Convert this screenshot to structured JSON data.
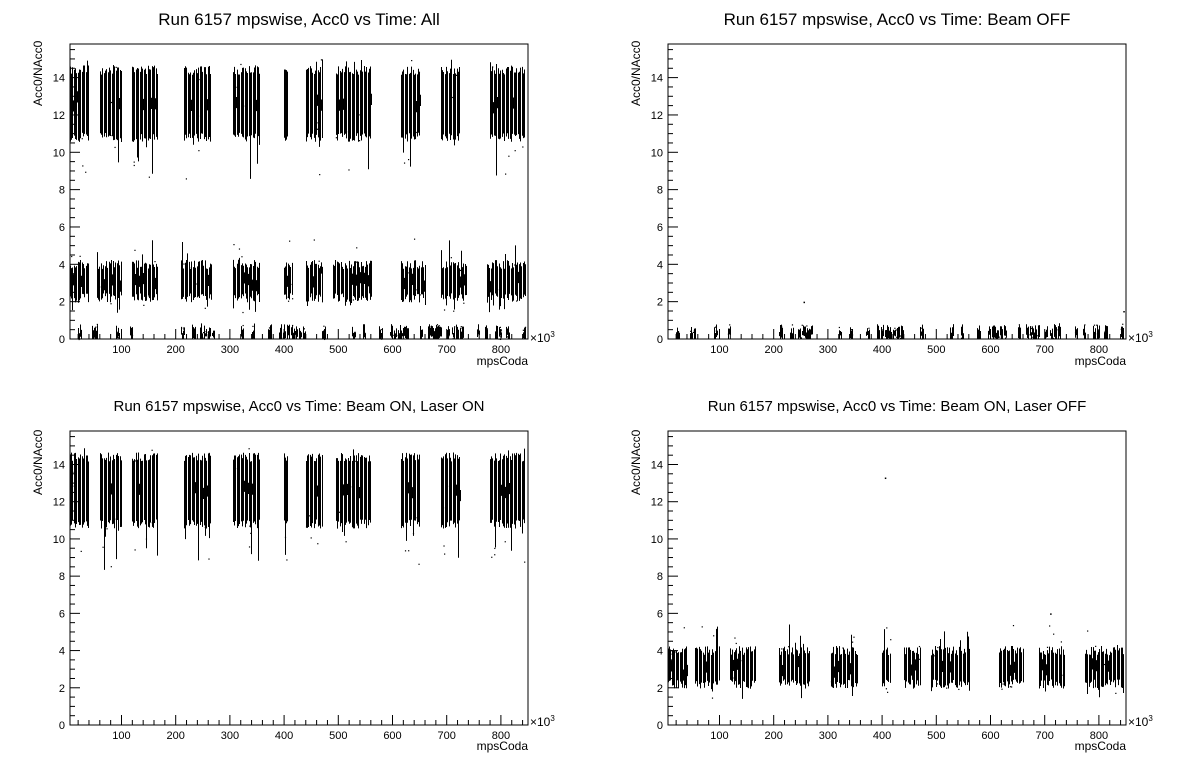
{
  "chart_data": [
    {
      "type": "scatter",
      "title": "Run 6157 mpswise, Acc0 vs Time: All",
      "xlabel": "mpsCoda",
      "ylabel": "Acc0/NAcc0",
      "x_multiplier": "×10",
      "x_multiplier_exp": "3",
      "xlim": [
        5,
        850
      ],
      "ylim": [
        0,
        15.8
      ],
      "xticks": [
        100,
        200,
        300,
        400,
        500,
        600,
        700,
        800
      ],
      "yticks": [
        0,
        2,
        4,
        6,
        8,
        10,
        12,
        14
      ],
      "grid": false,
      "legend": "none",
      "marker_color": "#000000",
      "bands": [
        {
          "name": "laser-on",
          "y_range": [
            10.8,
            14.4
          ],
          "tail_low": 8.3,
          "tail_high": 15.0,
          "x_segments": [
            [
              5,
              40
            ],
            [
              60,
              100
            ],
            [
              120,
              165
            ],
            [
              215,
              265
            ],
            [
              305,
              355
            ],
            [
              400,
              405
            ],
            [
              440,
              470
            ],
            [
              495,
              560
            ],
            [
              615,
              650
            ],
            [
              690,
              725
            ],
            [
              780,
              845
            ]
          ]
        },
        {
          "name": "laser-off",
          "y_range": [
            2.2,
            4.0
          ],
          "tail_low": 1.4,
          "tail_high": 5.4,
          "x_segments": [
            [
              5,
              40
            ],
            [
              55,
              100
            ],
            [
              120,
              165
            ],
            [
              210,
              265
            ],
            [
              305,
              355
            ],
            [
              400,
              415
            ],
            [
              440,
              470
            ],
            [
              490,
              560
            ],
            [
              615,
              660
            ],
            [
              690,
              735
            ],
            [
              775,
              845
            ]
          ]
        },
        {
          "name": "beam-off",
          "y_range": [
            0.0,
            0.55
          ],
          "tail_low": 0.0,
          "tail_high": 0.85,
          "x_segments": [
            [
              20,
              25
            ],
            [
              45,
              55
            ],
            [
              90,
              95
            ],
            [
              115,
              120
            ],
            [
              210,
              215
            ],
            [
              230,
              235
            ],
            [
              245,
              270
            ],
            [
              320,
              325
            ],
            [
              340,
              345
            ],
            [
              370,
              375
            ],
            [
              390,
              440
            ],
            [
              470,
              475
            ],
            [
              525,
              530
            ],
            [
              545,
              550
            ],
            [
              575,
              580
            ],
            [
              595,
              630
            ],
            [
              650,
              655
            ],
            [
              665,
              690
            ],
            [
              700,
              705
            ],
            [
              710,
              730
            ],
            [
              755,
              760
            ],
            [
              770,
              775
            ],
            [
              790,
              800
            ],
            [
              810,
              815
            ],
            [
              840,
              845
            ]
          ]
        }
      ]
    },
    {
      "type": "scatter",
      "title": "Run 6157 mpswise, Acc0 vs Time: Beam OFF",
      "xlabel": "mpsCoda",
      "ylabel": "Acc0/NAcc0",
      "x_multiplier": "×10",
      "x_multiplier_exp": "3",
      "xlim": [
        5,
        850
      ],
      "ylim": [
        0,
        15.8
      ],
      "xticks": [
        100,
        200,
        300,
        400,
        500,
        600,
        700,
        800
      ],
      "yticks": [
        0,
        2,
        4,
        6,
        8,
        10,
        12,
        14
      ],
      "grid": false,
      "legend": "none",
      "marker_color": "#000000",
      "bands": [
        {
          "name": "beam-off",
          "y_range": [
            0.0,
            0.55
          ],
          "tail_low": 0.0,
          "tail_high": 0.85,
          "x_segments": [
            [
              20,
              25
            ],
            [
              45,
              55
            ],
            [
              90,
              95
            ],
            [
              115,
              120
            ],
            [
              210,
              215
            ],
            [
              230,
              235
            ],
            [
              245,
              270
            ],
            [
              320,
              325
            ],
            [
              340,
              345
            ],
            [
              370,
              375
            ],
            [
              390,
              440
            ],
            [
              470,
              475
            ],
            [
              525,
              530
            ],
            [
              545,
              550
            ],
            [
              575,
              580
            ],
            [
              595,
              630
            ],
            [
              650,
              655
            ],
            [
              665,
              690
            ],
            [
              700,
              705
            ],
            [
              710,
              730
            ],
            [
              755,
              760
            ],
            [
              770,
              775
            ],
            [
              790,
              800
            ],
            [
              810,
              815
            ],
            [
              840,
              845
            ]
          ]
        }
      ],
      "outliers": [
        [
          255,
          2.0
        ],
        [
          845,
          1.5
        ]
      ]
    },
    {
      "type": "scatter",
      "title": "Run 6157 mpswise, Acc0 vs Time: Beam ON, Laser ON",
      "xlabel": "mpsCoda",
      "ylabel": "Acc0/NAcc0",
      "x_multiplier": "×10",
      "x_multiplier_exp": "3",
      "xlim": [
        5,
        850
      ],
      "ylim": [
        0,
        15.8
      ],
      "xticks": [
        100,
        200,
        300,
        400,
        500,
        600,
        700,
        800
      ],
      "yticks": [
        0,
        2,
        4,
        6,
        8,
        10,
        12,
        14
      ],
      "grid": false,
      "legend": "none",
      "marker_color": "#000000",
      "bands": [
        {
          "name": "laser-on",
          "y_range": [
            10.8,
            14.4
          ],
          "tail_low": 8.3,
          "tail_high": 15.0,
          "x_segments": [
            [
              5,
              40
            ],
            [
              60,
              100
            ],
            [
              120,
              165
            ],
            [
              215,
              265
            ],
            [
              305,
              355
            ],
            [
              400,
              405
            ],
            [
              440,
              470
            ],
            [
              495,
              560
            ],
            [
              615,
              650
            ],
            [
              690,
              725
            ],
            [
              780,
              845
            ]
          ]
        }
      ]
    },
    {
      "type": "scatter",
      "title": "Run 6157 mpswise, Acc0 vs Time: Beam ON, Laser OFF",
      "xlabel": "mpsCoda",
      "ylabel": "Acc0/NAcc0",
      "x_multiplier": "×10",
      "x_multiplier_exp": "3",
      "xlim": [
        5,
        850
      ],
      "ylim": [
        0,
        15.8
      ],
      "xticks": [
        100,
        200,
        300,
        400,
        500,
        600,
        700,
        800
      ],
      "yticks": [
        0,
        2,
        4,
        6,
        8,
        10,
        12,
        14
      ],
      "grid": false,
      "legend": "none",
      "marker_color": "#000000",
      "bands": [
        {
          "name": "laser-off",
          "y_range": [
            2.2,
            4.0
          ],
          "tail_low": 1.4,
          "tail_high": 5.4,
          "x_segments": [
            [
              5,
              40
            ],
            [
              55,
              100
            ],
            [
              120,
              165
            ],
            [
              210,
              265
            ],
            [
              305,
              355
            ],
            [
              400,
              415
            ],
            [
              440,
              470
            ],
            [
              490,
              560
            ],
            [
              615,
              660
            ],
            [
              690,
              735
            ],
            [
              775,
              845
            ]
          ]
        }
      ],
      "outliers": [
        [
          405,
          13.3
        ],
        [
          710,
          6.0
        ]
      ]
    }
  ]
}
